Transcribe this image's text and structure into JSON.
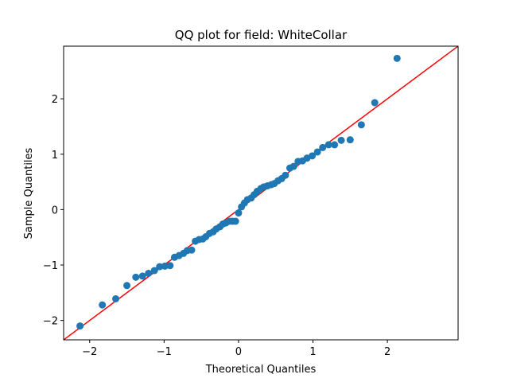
{
  "chart_data": {
    "type": "scatter",
    "title": "QQ plot for field: WhiteCollar",
    "xlabel": "Theoretical Quantiles",
    "ylabel": "Sample Quantiles",
    "xlim": [
      -2.35,
      2.95
    ],
    "ylim": [
      -2.35,
      2.95
    ],
    "xticks": [
      -2,
      -1,
      0,
      1,
      2
    ],
    "yticks": [
      -2,
      -1,
      0,
      1,
      2
    ],
    "grid": false,
    "legend": "none",
    "point_color": "#1f77b4",
    "reference_line": {
      "color": "#ff0000",
      "slope": 1,
      "intercept": 0
    },
    "series": [
      {
        "x": [
          -2.13,
          -1.83,
          -1.65,
          -1.5,
          -1.38,
          -1.29,
          -1.21,
          -1.13,
          -1.06,
          -0.99,
          -0.92,
          -0.86,
          -0.8,
          -0.74,
          -0.69,
          -0.63,
          -0.58,
          -0.53,
          -0.48,
          -0.44,
          -0.39,
          -0.34,
          -0.3,
          -0.25,
          -0.21,
          -0.17,
          -0.12,
          -0.08,
          -0.04,
          0.0,
          0.04,
          0.08,
          0.12,
          0.17,
          0.21,
          0.25,
          0.3,
          0.34,
          0.39,
          0.44,
          0.48,
          0.53,
          0.58,
          0.63,
          0.69,
          0.74,
          0.8,
          0.86,
          0.92,
          0.99,
          1.06,
          1.13,
          1.21,
          1.29,
          1.38,
          1.5,
          1.65,
          1.83,
          2.13
        ],
        "y": [
          -2.1,
          -1.72,
          -1.61,
          -1.37,
          -1.22,
          -1.2,
          -1.15,
          -1.1,
          -1.03,
          -1.02,
          -1.01,
          -0.86,
          -0.83,
          -0.79,
          -0.74,
          -0.73,
          -0.57,
          -0.54,
          -0.53,
          -0.49,
          -0.43,
          -0.4,
          -0.35,
          -0.31,
          -0.26,
          -0.24,
          -0.21,
          -0.21,
          -0.21,
          -0.06,
          0.05,
          0.12,
          0.18,
          0.21,
          0.27,
          0.33,
          0.38,
          0.41,
          0.43,
          0.45,
          0.47,
          0.52,
          0.56,
          0.62,
          0.75,
          0.78,
          0.87,
          0.88,
          0.93,
          0.97,
          1.04,
          1.12,
          1.17,
          1.17,
          1.25,
          1.26,
          1.53,
          1.93,
          2.73
        ]
      }
    ]
  }
}
